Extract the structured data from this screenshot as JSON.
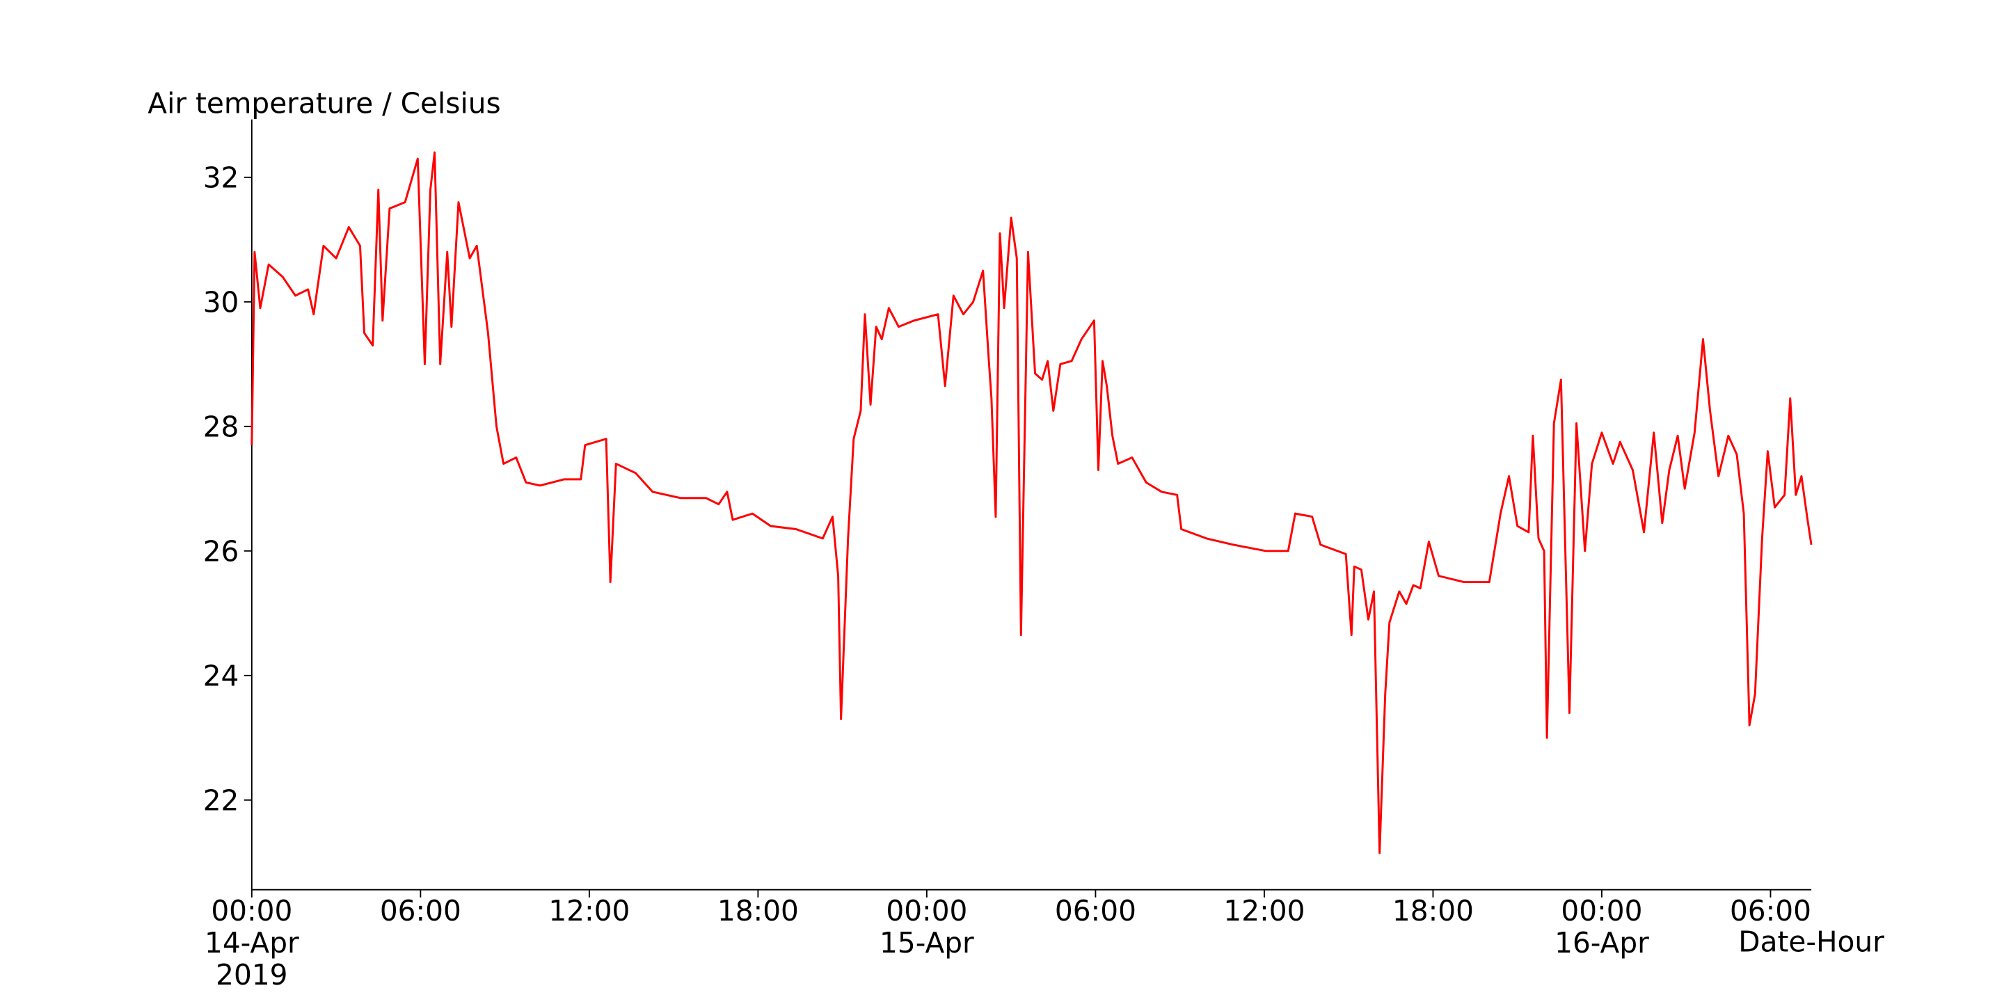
{
  "chart_data": {
    "type": "line",
    "ylabel": "Air temperature / Celsius",
    "xlabel": "Date-Hour",
    "xlim": [
      "2019-04-14T00:00",
      "2019-04-16T07:27"
    ],
    "xticks": [
      {
        "value": "2019-04-14T00:00",
        "label": "00:00\n14-Apr\n2019"
      },
      {
        "value": "2019-04-14T06:00",
        "label": "06:00"
      },
      {
        "value": "2019-04-14T12:00",
        "label": "12:00"
      },
      {
        "value": "2019-04-14T18:00",
        "label": "18:00"
      },
      {
        "value": "2019-04-15T00:00",
        "label": "00:00\n15-Apr"
      },
      {
        "value": "2019-04-15T06:00",
        "label": "06:00"
      },
      {
        "value": "2019-04-15T12:00",
        "label": "12:00"
      },
      {
        "value": "2019-04-15T18:00",
        "label": "18:00"
      },
      {
        "value": "2019-04-16T00:00",
        "label": "00:00\n16-Apr"
      },
      {
        "value": "2019-04-16T06:00",
        "label": "06:00"
      }
    ],
    "ylim": [
      20.56,
      32.93
    ],
    "yticks": [
      22,
      24,
      26,
      28,
      30,
      32
    ],
    "x": [
      "2019-04-14T00:00",
      "2019-04-14T00:06",
      "2019-04-14T00:18",
      "2019-04-14T00:36",
      "2019-04-14T01:06",
      "2019-04-14T01:33",
      "2019-04-14T02:00",
      "2019-04-14T02:12",
      "2019-04-14T02:33",
      "2019-04-14T03:00",
      "2019-04-14T03:27",
      "2019-04-14T03:51",
      "2019-04-14T04:00",
      "2019-04-14T04:18",
      "2019-04-14T04:30",
      "2019-04-14T04:39",
      "2019-04-14T04:54",
      "2019-04-14T05:27",
      "2019-04-14T05:54",
      "2019-04-14T06:09",
      "2019-04-14T06:21",
      "2019-04-14T06:30",
      "2019-04-14T06:42",
      "2019-04-14T06:57",
      "2019-04-14T07:06",
      "2019-04-14T07:21",
      "2019-04-14T07:45",
      "2019-04-14T08:00",
      "2019-04-14T08:24",
      "2019-04-14T08:42",
      "2019-04-14T08:57",
      "2019-04-14T09:24",
      "2019-04-14T09:45",
      "2019-04-14T10:15",
      "2019-04-14T11:06",
      "2019-04-14T11:42",
      "2019-04-14T11:51",
      "2019-04-14T12:36",
      "2019-04-14T12:45",
      "2019-04-14T12:57",
      "2019-04-14T13:39",
      "2019-04-14T14:15",
      "2019-04-14T15:15",
      "2019-04-14T16:09",
      "2019-04-14T16:36",
      "2019-04-14T16:54",
      "2019-04-14T17:06",
      "2019-04-14T17:48",
      "2019-04-14T18:27",
      "2019-04-14T19:21",
      "2019-04-14T20:18",
      "2019-04-14T20:39",
      "2019-04-14T20:51",
      "2019-04-14T20:57",
      "2019-04-14T21:12",
      "2019-04-14T21:24",
      "2019-04-14T21:39",
      "2019-04-14T21:48",
      "2019-04-14T22:00",
      "2019-04-14T22:12",
      "2019-04-14T22:24",
      "2019-04-14T22:39",
      "2019-04-14T23:00",
      "2019-04-14T23:33",
      "2019-04-15T00:24",
      "2019-04-15T00:39",
      "2019-04-15T00:57",
      "2019-04-15T01:18",
      "2019-04-15T01:39",
      "2019-04-15T02:00",
      "2019-04-15T02:12",
      "2019-04-15T02:18",
      "2019-04-15T02:27",
      "2019-04-15T02:36",
      "2019-04-15T02:45",
      "2019-04-15T03:00",
      "2019-04-15T03:12",
      "2019-04-15T03:21",
      "2019-04-15T03:36",
      "2019-04-15T03:51",
      "2019-04-15T04:06",
      "2019-04-15T04:18",
      "2019-04-15T04:30",
      "2019-04-15T04:45",
      "2019-04-15T05:09",
      "2019-04-15T05:30",
      "2019-04-15T05:57",
      "2019-04-15T06:06",
      "2019-04-15T06:15",
      "2019-04-15T06:24",
      "2019-04-15T06:36",
      "2019-04-15T06:48",
      "2019-04-15T07:18",
      "2019-04-15T07:48",
      "2019-04-15T08:21",
      "2019-04-15T08:54",
      "2019-04-15T09:03",
      "2019-04-15T09:57",
      "2019-04-15T10:54",
      "2019-04-15T12:03",
      "2019-04-15T12:51",
      "2019-04-15T13:06",
      "2019-04-15T13:42",
      "2019-04-15T14:00",
      "2019-04-15T14:54",
      "2019-04-15T15:06",
      "2019-04-15T15:12",
      "2019-04-15T15:27",
      "2019-04-15T15:42",
      "2019-04-15T15:54",
      "2019-04-15T16:06",
      "2019-04-15T16:18",
      "2019-04-15T16:27",
      "2019-04-15T16:48",
      "2019-04-15T17:03",
      "2019-04-15T17:18",
      "2019-04-15T17:33",
      "2019-04-15T17:51",
      "2019-04-15T18:12",
      "2019-04-15T19:06",
      "2019-04-15T20:00",
      "2019-04-15T20:24",
      "2019-04-15T20:42",
      "2019-04-15T21:00",
      "2019-04-15T21:24",
      "2019-04-15T21:33",
      "2019-04-15T21:45",
      "2019-04-15T21:57",
      "2019-04-15T22:03",
      "2019-04-15T22:18",
      "2019-04-15T22:33",
      "2019-04-15T22:51",
      "2019-04-15T23:06",
      "2019-04-15T23:24",
      "2019-04-15T23:39",
      "2019-04-16T00:00",
      "2019-04-16T00:24",
      "2019-04-16T00:39",
      "2019-04-16T01:06",
      "2019-04-16T01:30",
      "2019-04-16T01:51",
      "2019-04-16T02:09",
      "2019-04-16T02:24",
      "2019-04-16T02:42",
      "2019-04-16T02:57",
      "2019-04-16T03:18",
      "2019-04-16T03:36",
      "2019-04-16T03:51",
      "2019-04-16T04:09",
      "2019-04-16T04:30",
      "2019-04-16T04:48",
      "2019-04-16T05:03",
      "2019-04-16T05:15",
      "2019-04-16T05:27",
      "2019-04-16T05:42",
      "2019-04-16T05:54",
      "2019-04-16T06:09",
      "2019-04-16T06:30",
      "2019-04-16T06:42",
      "2019-04-16T06:54",
      "2019-04-16T07:06",
      "2019-04-16T07:18",
      "2019-04-16T07:27"
    ],
    "series": [
      {
        "name": "Air temperature",
        "color": "#ff0000",
        "values": [
          27.7,
          30.8,
          29.9,
          30.6,
          30.4,
          30.1,
          30.2,
          29.8,
          30.9,
          30.7,
          31.2,
          30.9,
          29.5,
          29.3,
          31.8,
          29.7,
          31.5,
          31.6,
          32.3,
          29.0,
          31.8,
          32.4,
          29.0,
          30.8,
          29.6,
          31.6,
          30.7,
          30.9,
          29.5,
          28.0,
          27.4,
          27.5,
          27.1,
          27.05,
          27.15,
          27.15,
          27.7,
          27.8,
          25.5,
          27.4,
          27.25,
          26.95,
          26.85,
          26.85,
          26.75,
          26.95,
          26.5,
          26.6,
          26.4,
          26.35,
          26.2,
          26.55,
          25.6,
          23.3,
          26.2,
          27.8,
          28.25,
          29.8,
          28.35,
          29.6,
          29.4,
          29.9,
          29.6,
          29.7,
          29.8,
          28.65,
          30.1,
          29.8,
          30.0,
          30.5,
          29.1,
          28.45,
          26.55,
          31.1,
          29.9,
          31.35,
          30.7,
          24.65,
          30.8,
          28.85,
          28.75,
          29.05,
          28.25,
          29.0,
          29.05,
          29.4,
          29.7,
          27.3,
          29.05,
          28.65,
          27.85,
          27.4,
          27.5,
          27.1,
          26.95,
          26.9,
          26.35,
          26.2,
          26.1,
          26.0,
          26.0,
          26.6,
          26.55,
          26.1,
          25.95,
          24.65,
          25.75,
          25.7,
          24.9,
          25.35,
          21.15,
          23.7,
          24.85,
          25.35,
          25.15,
          25.45,
          25.4,
          26.15,
          25.6,
          25.5,
          25.5,
          26.6,
          27.2,
          26.4,
          26.3,
          27.85,
          26.2,
          26.0,
          23.0,
          28.05,
          28.75,
          23.4,
          28.05,
          26.0,
          27.4,
          27.9,
          27.4,
          27.75,
          27.3,
          26.3,
          27.9,
          26.45,
          27.3,
          27.85,
          27.0,
          27.9,
          29.4,
          28.25,
          27.2,
          27.85,
          27.55,
          26.6,
          23.2,
          23.7,
          26.2,
          27.6,
          26.7,
          26.9,
          28.45,
          26.9,
          27.2,
          26.55,
          26.1
        ]
      }
    ]
  }
}
